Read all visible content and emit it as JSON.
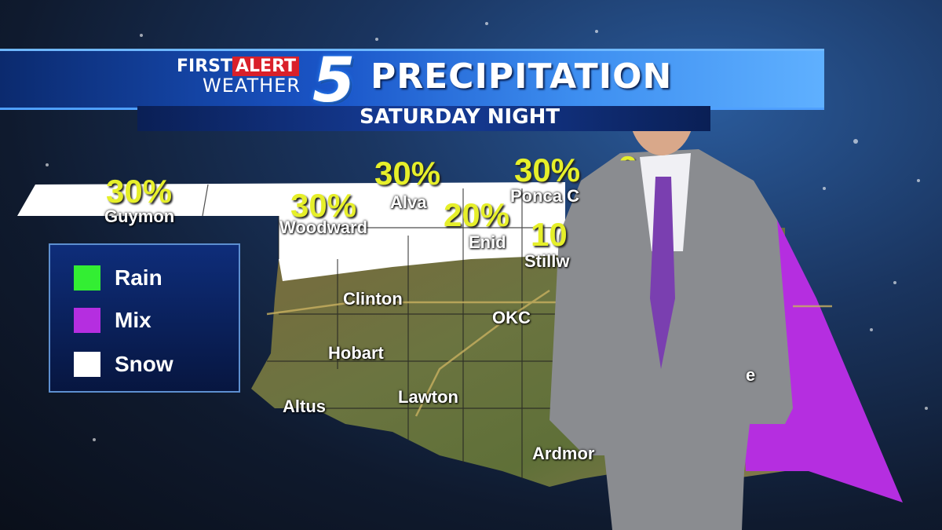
{
  "header": {
    "brand_first": "FIRST",
    "brand_alert": "ALERT",
    "brand_weather": "WEATHER",
    "channel": "5",
    "title": "PRECIPITATION",
    "subtitle": "SATURDAY NIGHT"
  },
  "legend": {
    "items": [
      {
        "label": "Rain",
        "color": "#33ee33"
      },
      {
        "label": "Mix",
        "color": "#b52ee0"
      },
      {
        "label": "Snow",
        "color": "#ffffff"
      }
    ]
  },
  "map": {
    "snow_color": "#ffffff",
    "mix_color": "#b52ee0",
    "percentages": [
      {
        "city": "Guymon",
        "value": "30%"
      },
      {
        "city": "Woodward",
        "value": "30%"
      },
      {
        "city": "Alva",
        "value": "30%"
      },
      {
        "city": "Enid",
        "value": "20%"
      },
      {
        "city": "Ponca C",
        "value": "30%"
      },
      {
        "city": "Stillw",
        "value": "10"
      },
      {
        "city": "",
        "value": "2"
      },
      {
        "city": "e",
        "value": ""
      }
    ],
    "cities": [
      "Clinton",
      "OKC",
      "Hobart",
      "Lawton",
      "Altus",
      "Ardmor"
    ]
  }
}
